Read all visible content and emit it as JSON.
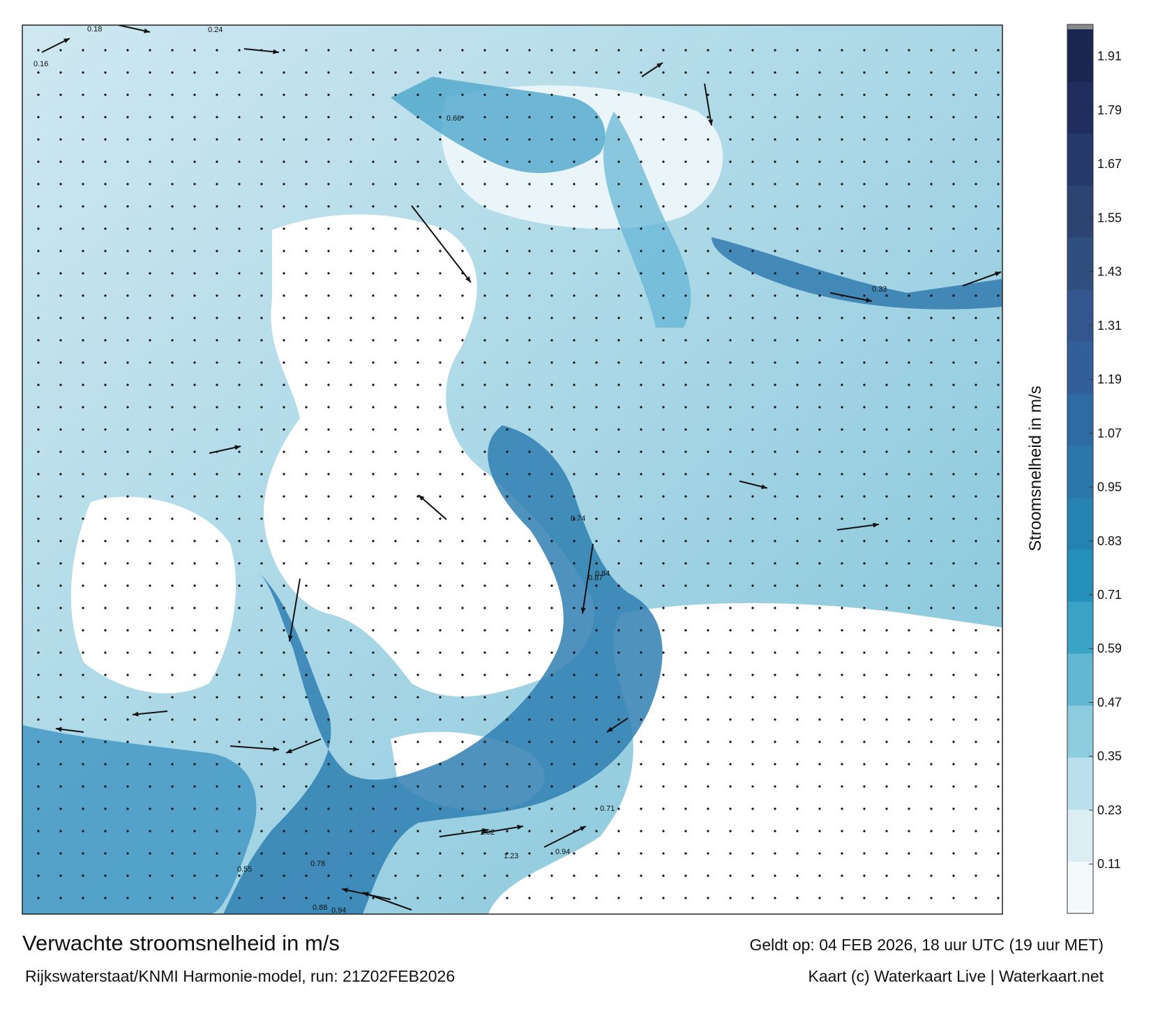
{
  "title": "Verwachte stroomsnelheid in m/s",
  "subtitle": "Rijkswaterstaat/KNMI Harmonie-model, run: 21Z02FEB2026",
  "valid": "Geldt op: 04 FEB 2026, 18 uur UTC (19 uur MET)",
  "credit": "Kaart (c) Waterkaart Live | Waterkaart.net",
  "colorbar": {
    "label": "Stroomsnelheid in m/s",
    "lim": [
      0,
      1.97
    ],
    "ticks": [
      0.11,
      0.23,
      0.35,
      0.47,
      0.59,
      0.71,
      0.83,
      0.95,
      1.07,
      1.19,
      1.31,
      1.43,
      1.55,
      1.67,
      1.79,
      1.91
    ],
    "colors": [
      "#f4f9fb",
      "#dbeef4",
      "#b9e0ec",
      "#8ecce0",
      "#62b8d3",
      "#3aa3c6",
      "#2590b9",
      "#2683b1",
      "#2b77aa",
      "#2f6ba3",
      "#325f9a",
      "#34568f",
      "#2f4f7e",
      "#2b4472",
      "#25396a",
      "#1f2e5e",
      "#1a2550"
    ]
  },
  "speed_labels": [
    0.18,
    0.24,
    0.16,
    0.66,
    0.74,
    0.84,
    0.87,
    1.02,
    1.23,
    0.94,
    0.88,
    0.94,
    0.78,
    0.71,
    0.55,
    0.33
  ]
}
